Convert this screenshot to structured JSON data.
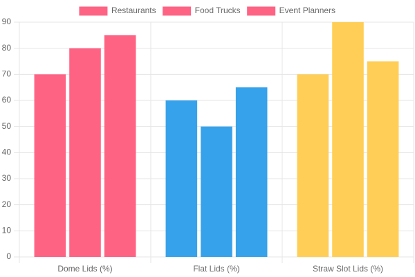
{
  "chart_data": {
    "type": "bar",
    "categories": [
      "Dome Lids (%)",
      "Flat Lids (%)",
      "Straw Slot Lids (%)"
    ],
    "series": [
      {
        "name": "Restaurants",
        "colors": [
          "#ff6384",
          "#36a2eb",
          "#ffce56"
        ],
        "values": [
          70,
          60,
          70
        ]
      },
      {
        "name": "Food Trucks",
        "colors": [
          "#ff6384",
          "#36a2eb",
          "#ffce56"
        ],
        "values": [
          80,
          50,
          90
        ]
      },
      {
        "name": "Event Planners",
        "colors": [
          "#ff6384",
          "#36a2eb",
          "#ffce56"
        ],
        "values": [
          85,
          65,
          75
        ]
      }
    ],
    "ylim": [
      0,
      90
    ],
    "yticks": [
      0,
      10,
      20,
      30,
      40,
      50,
      60,
      70,
      80,
      90
    ],
    "grid": true,
    "legend": "top"
  }
}
